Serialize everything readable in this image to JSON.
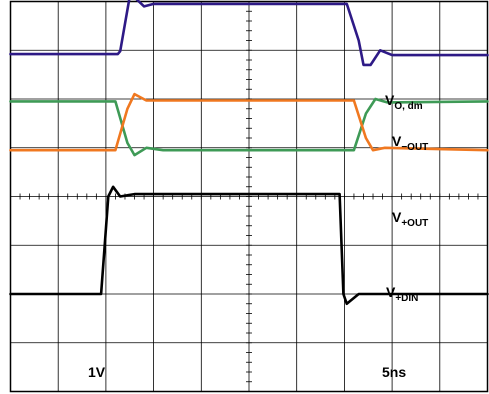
{
  "chart_data": {
    "type": "line",
    "title": "",
    "grid": true,
    "divisions": {
      "x": 10,
      "y": 8
    },
    "xlim": [
      0,
      10
    ],
    "ylim": [
      0,
      8
    ],
    "scale_labels": {
      "vertical": "1V",
      "horizontal": "5ns"
    },
    "series": [
      {
        "key": "vo_dm",
        "name_main": "V",
        "name_sub": "O, dm",
        "color": "#2e1a86",
        "points": [
          [
            0,
            6.92
          ],
          [
            2.25,
            6.92
          ],
          [
            2.3,
            6.98
          ],
          [
            2.55,
            8.38
          ],
          [
            2.65,
            8.04
          ],
          [
            2.8,
            7.9
          ],
          [
            3.0,
            7.95
          ],
          [
            7.05,
            7.95
          ],
          [
            7.3,
            7.2
          ],
          [
            7.4,
            6.7
          ],
          [
            7.55,
            6.7
          ],
          [
            7.75,
            7.0
          ],
          [
            8.0,
            6.9
          ],
          [
            10,
            6.9
          ]
        ]
      },
      {
        "key": "v_minus_out",
        "name_main": "V",
        "name_sub": "−OUT",
        "color": "#3e9a56",
        "points": [
          [
            0,
            5.95
          ],
          [
            2.2,
            5.95
          ],
          [
            2.45,
            5.1
          ],
          [
            2.6,
            4.85
          ],
          [
            2.85,
            5.0
          ],
          [
            3.2,
            4.95
          ],
          [
            7.2,
            4.95
          ],
          [
            7.45,
            5.7
          ],
          [
            7.65,
            6.0
          ],
          [
            7.9,
            5.93
          ],
          [
            10,
            5.95
          ]
        ]
      },
      {
        "key": "v_plus_out",
        "name_main": "V",
        "name_sub": "+OUT",
        "color": "#f07820",
        "points": [
          [
            0,
            4.95
          ],
          [
            2.2,
            4.95
          ],
          [
            2.45,
            5.8
          ],
          [
            2.6,
            6.1
          ],
          [
            2.85,
            5.97
          ],
          [
            3.2,
            5.97
          ],
          [
            7.2,
            5.97
          ],
          [
            7.45,
            5.2
          ],
          [
            7.6,
            4.95
          ],
          [
            7.85,
            5.0
          ],
          [
            10,
            4.95
          ]
        ]
      },
      {
        "key": "v_plus_din",
        "name_main": "V",
        "name_sub": "+DIN",
        "color": "#000000",
        "points": [
          [
            0,
            2.0
          ],
          [
            1.9,
            2.0
          ],
          [
            2.05,
            4.0
          ],
          [
            2.15,
            4.2
          ],
          [
            2.3,
            4.0
          ],
          [
            2.6,
            4.05
          ],
          [
            6.9,
            4.05
          ],
          [
            6.98,
            2.0
          ],
          [
            7.05,
            1.8
          ],
          [
            7.3,
            2.0
          ],
          [
            10,
            2.0
          ]
        ]
      }
    ]
  }
}
